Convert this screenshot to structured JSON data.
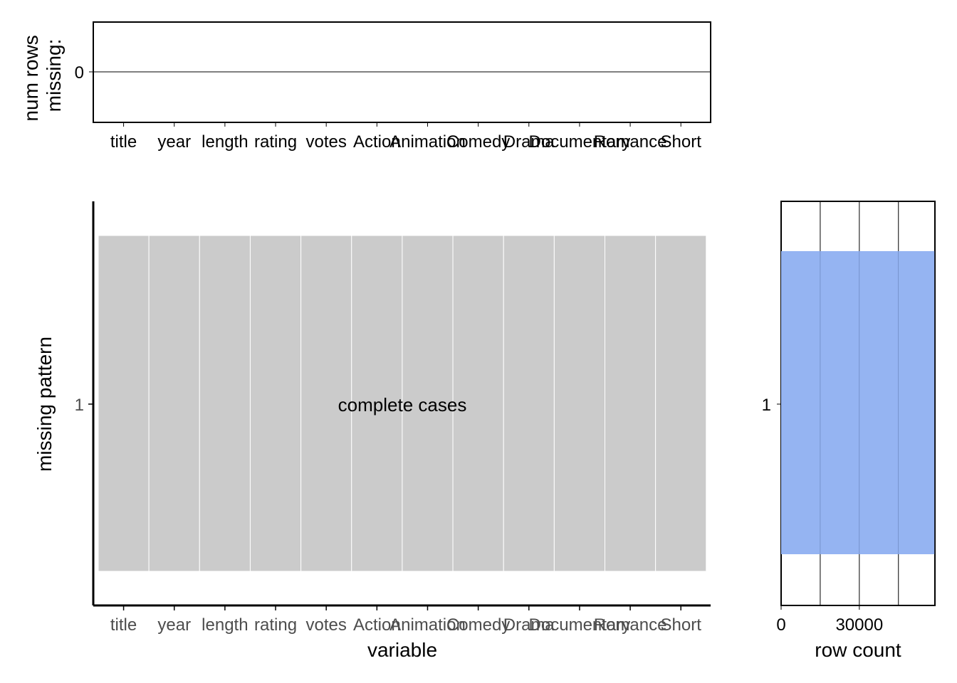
{
  "chart_data": [
    {
      "type": "bar",
      "panel": "top",
      "ylabel": "num rows\nmissing:",
      "categories": [
        "title",
        "year",
        "length",
        "rating",
        "votes",
        "Action",
        "Animation",
        "Comedy",
        "Drama",
        "Documentary",
        "Romance",
        "Short"
      ],
      "values": [
        0,
        0,
        0,
        0,
        0,
        0,
        0,
        0,
        0,
        0,
        0,
        0
      ],
      "y_ticks": [
        "0"
      ],
      "ylim": [
        -1,
        1
      ],
      "grid": false
    },
    {
      "type": "heatmap",
      "panel": "main",
      "xlabel": "variable",
      "ylabel": "missing pattern",
      "categories": [
        "title",
        "year",
        "length",
        "rating",
        "votes",
        "Action",
        "Animation",
        "Comedy",
        "Drama",
        "Documentary",
        "Romance",
        "Short"
      ],
      "patterns": [
        {
          "id": "1",
          "label": "complete cases",
          "missing": [
            false,
            false,
            false,
            false,
            false,
            false,
            false,
            false,
            false,
            false,
            false,
            false
          ]
        }
      ],
      "colors": {
        "present": "#cbcbcb",
        "missing": "#e76f6f"
      }
    },
    {
      "type": "bar",
      "panel": "right",
      "orientation": "horizontal",
      "xlabel": "row count",
      "categories": [
        "1"
      ],
      "values": [
        58788
      ],
      "x_ticks": [
        0,
        30000
      ],
      "xlim": [
        0,
        59000
      ],
      "grid": true,
      "bar_color": "#95b4f2"
    }
  ]
}
